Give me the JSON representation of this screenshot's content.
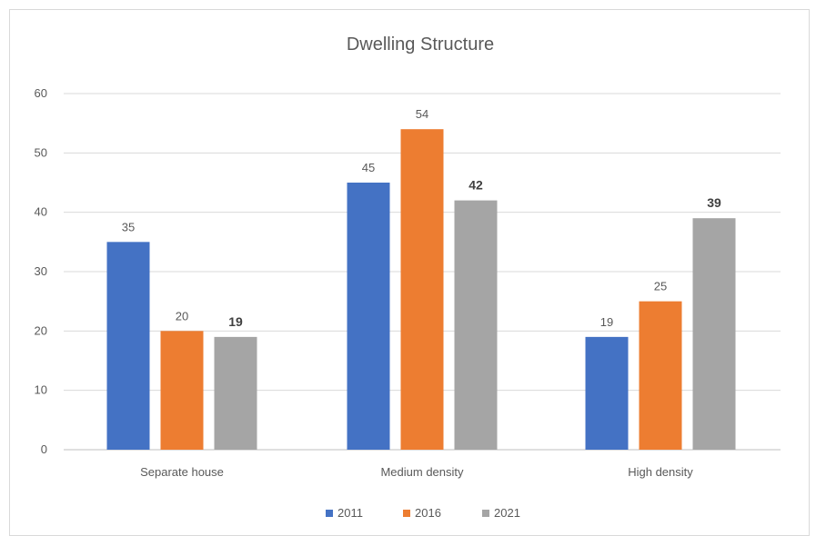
{
  "chart_data": {
    "type": "bar",
    "title": "Dwelling Structure",
    "categories": [
      "Separate house",
      "Medium density",
      "High density"
    ],
    "series": [
      {
        "name": "2011",
        "color": "#4472C4",
        "values": [
          35,
          45,
          19
        ]
      },
      {
        "name": "2016",
        "color": "#ED7D31",
        "values": [
          20,
          54,
          25
        ]
      },
      {
        "name": "2021",
        "color": "#A5A5A5",
        "values": [
          19,
          42,
          39
        ]
      }
    ],
    "ylim": [
      0,
      60
    ],
    "yticks": [
      0,
      10,
      20,
      30,
      40,
      50,
      60
    ],
    "grid": true,
    "legend": "bottom",
    "bold_labels_series": [
      "2021"
    ],
    "xlabel": "",
    "ylabel": ""
  }
}
